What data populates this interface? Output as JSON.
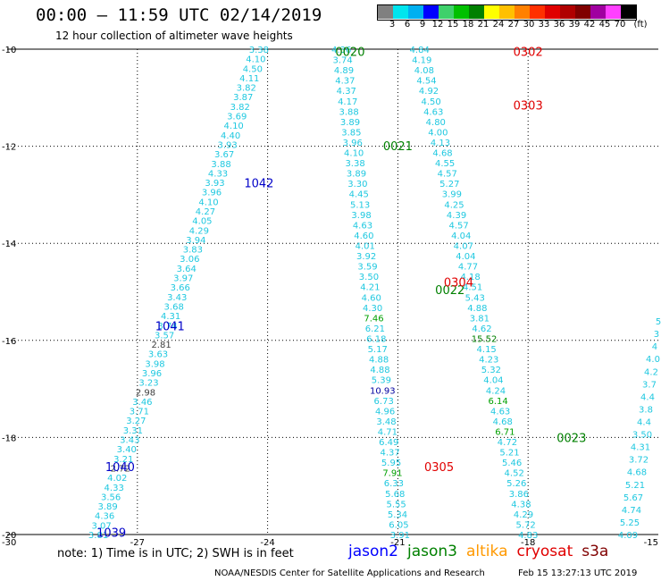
{
  "header": {
    "title": "00:00 – 11:59 UTC 02/14/2019",
    "subtitle": "12 hour collection of altimeter wave heights"
  },
  "legend": {
    "unit": "(ft)",
    "colors": [
      "#808080",
      "#00e5ee",
      "#00b0f0",
      "#0000ff",
      "#3fd16b",
      "#00c000",
      "#008000",
      "#ffff00",
      "#ffc000",
      "#ff8000",
      "#ff3000",
      "#e00000",
      "#b00000",
      "#800000",
      "#a000a0",
      "#ff40ff",
      "#000000"
    ],
    "labels": [
      "3",
      "6",
      "9",
      "12",
      "15",
      "18",
      "21",
      "24",
      "27",
      "30",
      "33",
      "36",
      "39",
      "42",
      "45",
      "70"
    ]
  },
  "chart_data": {
    "type": "scatter",
    "title": "",
    "xlabel": "",
    "ylabel": "",
    "xlim": [
      -30,
      -15
    ],
    "ylim": [
      -20,
      -10
    ],
    "x_ticks": [
      "-30",
      "-27",
      "-24",
      "-21",
      "-18",
      "-15"
    ],
    "y_ticks": [
      "-10",
      "-12",
      "-14",
      "-16",
      "-18",
      "-20"
    ],
    "grid": true,
    "track_labels": [
      {
        "text": "1042",
        "lon": -24.2,
        "lat": -12.75,
        "color": "#0000c8"
      },
      {
        "text": "1041",
        "lon": -26.25,
        "lat": -15.7,
        "color": "#0000c8"
      },
      {
        "text": "1040",
        "lon": -27.4,
        "lat": -18.6,
        "color": "#0000c8"
      },
      {
        "text": "1039",
        "lon": -27.6,
        "lat": -19.95,
        "color": "#0000c8"
      },
      {
        "text": "0020",
        "lon": -22.1,
        "lat": -10.05,
        "color": "#008000"
      },
      {
        "text": "0021",
        "lon": -21.0,
        "lat": -11.99,
        "color": "#008000"
      },
      {
        "text": "0022",
        "lon": -19.8,
        "lat": -14.95,
        "color": "#008000"
      },
      {
        "text": "0023",
        "lon": -17.0,
        "lat": -18.0,
        "color": "#008000"
      },
      {
        "text": "0302",
        "lon": -18.0,
        "lat": -10.05,
        "color": "#e00000"
      },
      {
        "text": "0303",
        "lon": -18.0,
        "lat": -11.15,
        "color": "#e00000"
      },
      {
        "text": "0304",
        "lon": -19.6,
        "lat": -14.8,
        "color": "#e00000"
      },
      {
        "text": "0305",
        "lon": -20.05,
        "lat": -18.6,
        "color": "#e00000"
      }
    ],
    "series": [
      {
        "name": "1039-1042",
        "start": [
          -24.2,
          -10.0
        ],
        "end": [
          -27.9,
          -20.0
        ],
        "values": [
          "3.38",
          "4.10",
          "4.50",
          "4.11",
          "3.82",
          "3.87",
          "3.82",
          "3.69",
          "4.10",
          "4.40",
          "3.93",
          "3.67",
          "3.88",
          "4.33",
          "3.93",
          "3.96",
          "4.10",
          "4.27",
          "4.05",
          "4.29",
          "3.94",
          "3.83",
          "3.06",
          "3.64",
          "3.97",
          "3.66",
          "3.43",
          "3.68",
          "4.31",
          "3.74",
          "3.57",
          "2.81",
          "3.63",
          "3.98",
          "3.96",
          "3.23",
          "2.98",
          "3.46",
          "3.71",
          "3.27",
          "3.31",
          "3.43",
          "3.40",
          "3.21",
          "2.72",
          "4.02",
          "4.33",
          "3.56",
          "3.89",
          "4.36",
          "3.07",
          "3.81"
        ],
        "highlights": {
          "2.81": "#404040",
          "2.98": "#404040",
          "2.72": "#404040"
        }
      },
      {
        "name": "0020-0022",
        "start": [
          -22.3,
          -10.0
        ],
        "end": [
          -20.95,
          -20.0
        ],
        "values": [
          "4.36",
          "3.74",
          "4.89",
          "4.37",
          "4.37",
          "4.17",
          "3.88",
          "3.89",
          "3.85",
          "3.96",
          "4.10",
          "3.38",
          "3.89",
          "3.30",
          "4.45",
          "5.13",
          "3.98",
          "4.63",
          "4.60",
          "4.01",
          "3.92",
          "3.59",
          "3.50",
          "4.21",
          "4.60",
          "4.30",
          "7.46",
          "6.21",
          "6.18",
          "5.17",
          "4.88",
          "4.88",
          "5.39",
          "10.93",
          "6.73",
          "4.96",
          "3.48",
          "4.71",
          "6.49",
          "4.37",
          "5.95",
          "7.91",
          "6.33",
          "5.68",
          "5.55",
          "5.34",
          "6.05",
          "3.91"
        ],
        "highlights": {
          "10.93": "#0000a0",
          "7.91": "#00a000",
          "7.46": "#00a000"
        }
      },
      {
        "name": "0302-0305",
        "start": [
          -20.5,
          -10.0
        ],
        "end": [
          -18.0,
          -20.0
        ],
        "values": [
          "4.84",
          "4.19",
          "4.08",
          "4.54",
          "4.92",
          "4.50",
          "4.63",
          "4.80",
          "4.00",
          "4.13",
          "4.68",
          "4.55",
          "4.57",
          "5.27",
          "3.99",
          "4.25",
          "4.39",
          "4.57",
          "4.04",
          "4.07",
          "4.04",
          "4.77",
          "4.18",
          "4.51",
          "5.43",
          "4.88",
          "3.81",
          "4.62",
          "15.52",
          "4.15",
          "4.23",
          "5.32",
          "4.04",
          "4.24",
          "6.14",
          "4.63",
          "4.68",
          "6.71",
          "4.72",
          "5.21",
          "5.46",
          "4.52",
          "5.26",
          "3.86",
          "4.38",
          "4.29",
          "5.72",
          "4.83"
        ],
        "highlights": {
          "15.52": "#008000",
          "6.71": "#00a000",
          "6.14": "#00a000"
        }
      },
      {
        "name": "edge",
        "start": [
          -15.0,
          -15.6
        ],
        "end": [
          -15.7,
          -20.0
        ],
        "values": [
          "5",
          "3",
          "4",
          "4.0",
          "4.2",
          "3.7",
          "4.4",
          "3.8",
          "4.4",
          "3.50",
          "4.31",
          "3.72",
          "4.68",
          "5.21",
          "5.67",
          "4.74",
          "5.25",
          "4.09"
        ],
        "highlights": {}
      }
    ]
  },
  "footer": {
    "note": "note: 1) Time is in UTC; 2) SWH is in feet",
    "satellites": [
      {
        "name": "jason2",
        "color": "#0000ff"
      },
      {
        "name": "jason3",
        "color": "#008000"
      },
      {
        "name": "altika",
        "color": "#ff9900"
      },
      {
        "name": "cryosat",
        "color": "#e00000"
      },
      {
        "name": "s3a",
        "color": "#800000"
      }
    ],
    "credit": "NOAA/NESDIS Center for Satellite Applications and Research",
    "timestamp": "Feb 15 13:27:13 UTC 2019"
  }
}
